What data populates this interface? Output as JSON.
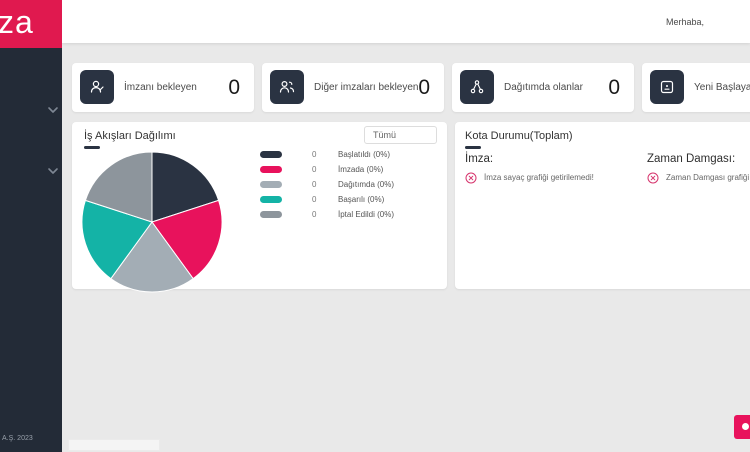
{
  "brand": {
    "logo_text": "za",
    "logo_bg": "#e0194f"
  },
  "topbar": {
    "greeting": "Merhaba,"
  },
  "sidebar": {
    "copyright": "A.Ş. 2023"
  },
  "stat_cards": [
    {
      "label": "İmzanı bekleyen",
      "value": "0",
      "icon": "person-signature-icon"
    },
    {
      "label": "Diğer imzaları bekleyen",
      "value": "0",
      "icon": "people-icon"
    },
    {
      "label": "Dağıtımda olanlar",
      "value": "0",
      "icon": "share-nodes-icon"
    },
    {
      "label": "Yeni Başlayan",
      "value": "",
      "icon": "document-icon"
    }
  ],
  "workflow_card": {
    "title": "İş Akışları Dağılımı",
    "filter_label": "Tümü",
    "legend": [
      {
        "count": "0",
        "label": "Başlatıldı (0%)"
      },
      {
        "count": "0",
        "label": "İmzada (0%)"
      },
      {
        "count": "0",
        "label": "Dağıtımda (0%)"
      },
      {
        "count": "0",
        "label": "Başarılı (0%)"
      },
      {
        "count": "0",
        "label": "İptal Edildi (0%)"
      }
    ]
  },
  "chart_data": {
    "type": "pie",
    "title": "İş Akışları Dağılımı",
    "labels": [
      "Başlatıldı (0%)",
      "İmzada (0%)",
      "Dağıtımda (0%)",
      "Başarılı (0%)",
      "İptal Edildi (0%)"
    ],
    "counts": [
      0,
      0,
      0,
      0,
      0
    ],
    "values": [
      20,
      20,
      20,
      20,
      20
    ],
    "colors": [
      "#2a3342",
      "#e8125c",
      "#a3adb5",
      "#14b3a6",
      "#8d959c"
    ],
    "legend_position": "right",
    "start_angle_deg": -90,
    "direction": "clockwise"
  },
  "quota_card": {
    "title": "Kota Durumu(Toplam)",
    "sections": [
      {
        "heading": "İmza:",
        "error": "İmza sayaç grafiği getirilemedi!"
      },
      {
        "heading": "Zaman Damgası:",
        "error": "Zaman Damgası grafiği getirilemedi!"
      }
    ]
  },
  "colors": {
    "accent": "#e0194f",
    "sidebar_bg": "#232b37",
    "icon_box_bg": "#2a3342",
    "page_bg": "#e9e9e9",
    "error": "#d6336c"
  }
}
